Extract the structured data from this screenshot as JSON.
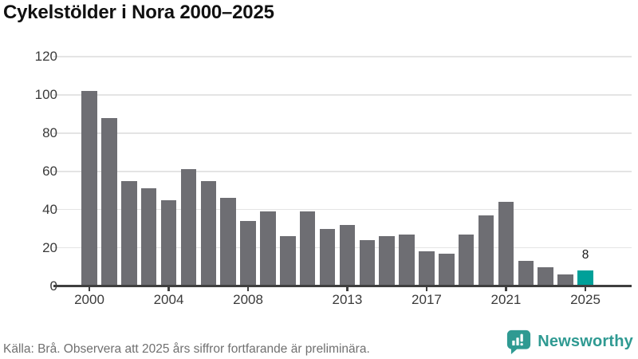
{
  "title": "Cykelstölder i Nora 2000–2025",
  "footer": {
    "source": "Källa: Brå. Observera att 2025 års siffror fortfarande är preliminära."
  },
  "logo": {
    "brand": "Newsworthy",
    "icon": "newsworthy-speech-bubble-bar-chart-icon",
    "color": "#2f9a92"
  },
  "chart_data": {
    "type": "bar",
    "title": "Cykelstölder i Nora 2000–2025",
    "xlabel": "",
    "ylabel": "",
    "categories": [
      2000,
      2001,
      2002,
      2003,
      2004,
      2005,
      2006,
      2007,
      2008,
      2009,
      2010,
      2011,
      2012,
      2013,
      2014,
      2015,
      2016,
      2017,
      2018,
      2019,
      2020,
      2021,
      2022,
      2023,
      2024,
      2025
    ],
    "values": [
      102,
      88,
      55,
      51,
      45,
      61,
      55,
      46,
      34,
      39,
      26,
      39,
      30,
      32,
      24,
      26,
      27,
      18,
      17,
      27,
      37,
      44,
      13,
      10,
      6,
      8
    ],
    "ylim": [
      0,
      120
    ],
    "y_ticks": [
      0,
      20,
      40,
      60,
      80,
      100,
      120
    ],
    "x_tick_years": [
      2000,
      2004,
      2008,
      2013,
      2017,
      2021,
      2025
    ],
    "grid": true,
    "legend": "none",
    "highlight_index": 25,
    "data_labels": [
      {
        "index": 25,
        "text": "8"
      }
    ],
    "colors": {
      "bar": "#6e6e73",
      "highlight": "#00a099",
      "grid": "#e4e4e4",
      "axis": "#3f3f3f",
      "tick_label": "#3a3a3a"
    }
  }
}
